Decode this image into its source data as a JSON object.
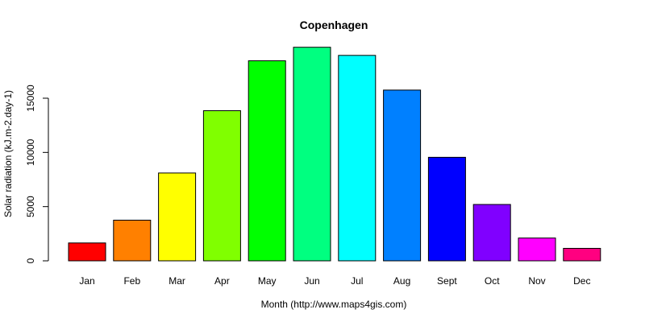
{
  "chart_data": {
    "type": "bar",
    "title": "Copenhagen",
    "xlabel": "Month (http://www.maps4gis.com)",
    "ylabel": "Solar radiation (kJ.m-2.day-1)",
    "categories": [
      "Jan",
      "Feb",
      "Mar",
      "Apr",
      "May",
      "Jun",
      "Jul",
      "Aug",
      "Sept",
      "Oct",
      "Nov",
      "Dec"
    ],
    "values": [
      1650,
      3750,
      8100,
      13850,
      18450,
      19700,
      18950,
      15750,
      9550,
      5200,
      2100,
      1150
    ],
    "colors": [
      "#FF0000",
      "#FF8000",
      "#FFFF00",
      "#80FF00",
      "#00FF00",
      "#00FF80",
      "#00FFFF",
      "#0080FF",
      "#0000FF",
      "#8000FF",
      "#FF00FF",
      "#FF0080"
    ],
    "yticks": [
      0,
      5000,
      10000,
      15000
    ],
    "ytick_labels": [
      "0",
      "5000",
      "10000",
      "15000"
    ],
    "ylim": [
      0,
      20000
    ],
    "grid": false,
    "legend": "none"
  }
}
